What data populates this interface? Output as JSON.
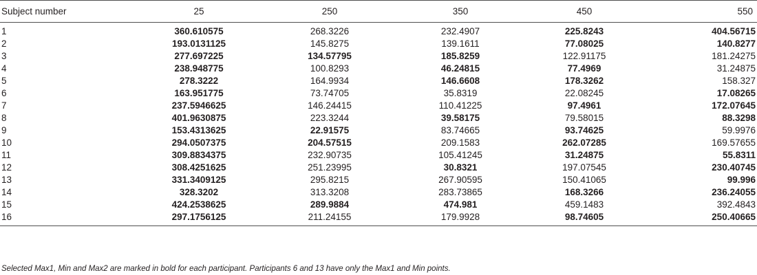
{
  "table": {
    "headers": [
      "Subject number",
      "25",
      "250",
      "350",
      "450",
      "550"
    ],
    "rows": [
      {
        "subject": "1",
        "cells": [
          {
            "v": "360.610575",
            "b": true
          },
          {
            "v": "268.3226",
            "b": false
          },
          {
            "v": "232.4907",
            "b": false
          },
          {
            "v": "225.8243",
            "b": true
          },
          {
            "v": "404.56715",
            "b": true
          }
        ]
      },
      {
        "subject": "2",
        "cells": [
          {
            "v": "193.0131125",
            "b": true
          },
          {
            "v": "145.8275",
            "b": false
          },
          {
            "v": "139.1611",
            "b": false
          },
          {
            "v": "77.08025",
            "b": true
          },
          {
            "v": "140.8277",
            "b": true
          }
        ]
      },
      {
        "subject": "3",
        "cells": [
          {
            "v": "277.697225",
            "b": true
          },
          {
            "v": "134.57795",
            "b": true
          },
          {
            "v": "185.8259",
            "b": true
          },
          {
            "v": "122.91175",
            "b": false
          },
          {
            "v": "181.24275",
            "b": false
          }
        ]
      },
      {
        "subject": "4",
        "cells": [
          {
            "v": "238.948775",
            "b": true
          },
          {
            "v": "100.8293",
            "b": false
          },
          {
            "v": "46.24815",
            "b": true
          },
          {
            "v": "77.4969",
            "b": true
          },
          {
            "v": "31.24875",
            "b": false
          }
        ]
      },
      {
        "subject": "5",
        "cells": [
          {
            "v": "278.3222",
            "b": true
          },
          {
            "v": "164.9934",
            "b": false
          },
          {
            "v": "146.6608",
            "b": true
          },
          {
            "v": "178.3262",
            "b": true
          },
          {
            "v": "158.327",
            "b": false
          }
        ]
      },
      {
        "subject": "6",
        "cells": [
          {
            "v": "163.951775",
            "b": true
          },
          {
            "v": "73.74705",
            "b": false
          },
          {
            "v": "35.8319",
            "b": false
          },
          {
            "v": "22.08245",
            "b": false
          },
          {
            "v": "17.08265",
            "b": true
          }
        ]
      },
      {
        "subject": "7",
        "cells": [
          {
            "v": "237.5946625",
            "b": true
          },
          {
            "v": "146.24415",
            "b": false
          },
          {
            "v": "110.41225",
            "b": false
          },
          {
            "v": "97.4961",
            "b": true
          },
          {
            "v": "172.07645",
            "b": true
          }
        ]
      },
      {
        "subject": "8",
        "cells": [
          {
            "v": "401.9630875",
            "b": true
          },
          {
            "v": "223.3244",
            "b": false
          },
          {
            "v": "39.58175",
            "b": true
          },
          {
            "v": "79.58015",
            "b": false
          },
          {
            "v": "88.3298",
            "b": true
          }
        ]
      },
      {
        "subject": "9",
        "cells": [
          {
            "v": "153.4313625",
            "b": true
          },
          {
            "v": "22.91575",
            "b": true
          },
          {
            "v": "83.74665",
            "b": false
          },
          {
            "v": "93.74625",
            "b": true
          },
          {
            "v": "59.9976",
            "b": false
          }
        ]
      },
      {
        "subject": "10",
        "cells": [
          {
            "v": "294.0507375",
            "b": true
          },
          {
            "v": "204.57515",
            "b": true
          },
          {
            "v": "209.1583",
            "b": false
          },
          {
            "v": "262.07285",
            "b": true
          },
          {
            "v": "169.57655",
            "b": false
          }
        ]
      },
      {
        "subject": "11",
        "cells": [
          {
            "v": "309.8834375",
            "b": true
          },
          {
            "v": "232.90735",
            "b": false
          },
          {
            "v": "105.41245",
            "b": false
          },
          {
            "v": "31.24875",
            "b": true
          },
          {
            "v": "55.8311",
            "b": true
          }
        ]
      },
      {
        "subject": "12",
        "cells": [
          {
            "v": "308.4251625",
            "b": true
          },
          {
            "v": "251.23995",
            "b": false
          },
          {
            "v": "30.8321",
            "b": true
          },
          {
            "v": "197.07545",
            "b": false
          },
          {
            "v": "230.40745",
            "b": true
          }
        ]
      },
      {
        "subject": "13",
        "cells": [
          {
            "v": "331.3409125",
            "b": true
          },
          {
            "v": "295.8215",
            "b": false
          },
          {
            "v": "267.90595",
            "b": false
          },
          {
            "v": "150.41065",
            "b": false
          },
          {
            "v": "99.996",
            "b": true
          }
        ]
      },
      {
        "subject": "14",
        "cells": [
          {
            "v": "328.3202",
            "b": true
          },
          {
            "v": "313.3208",
            "b": false
          },
          {
            "v": "283.73865",
            "b": false
          },
          {
            "v": "168.3266",
            "b": true
          },
          {
            "v": "236.24055",
            "b": true
          }
        ]
      },
      {
        "subject": "15",
        "cells": [
          {
            "v": "424.2538625",
            "b": true
          },
          {
            "v": "289.9884",
            "b": true
          },
          {
            "v": "474.981",
            "b": true
          },
          {
            "v": "459.1483",
            "b": false
          },
          {
            "v": "392.4843",
            "b": false
          }
        ]
      },
      {
        "subject": "16",
        "cells": [
          {
            "v": "297.1756125",
            "b": true
          },
          {
            "v": "211.24155",
            "b": false
          },
          {
            "v": "179.9928",
            "b": false
          },
          {
            "v": "98.74605",
            "b": true
          },
          {
            "v": "250.40665",
            "b": true
          }
        ]
      }
    ]
  },
  "footnote": "Selected Max1, Min and Max2 are marked in bold for each participant. Participants 6 and 13 have only the Max1 and Min points."
}
